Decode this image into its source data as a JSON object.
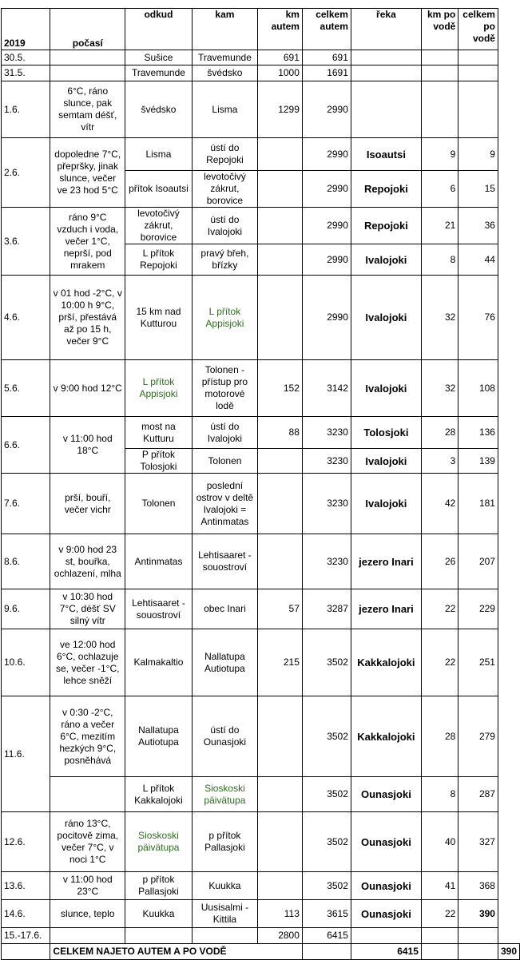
{
  "table": {
    "header": [
      "2019",
      "počasí",
      "odkud",
      "kam",
      "km autem",
      "celkem autem",
      "řeka",
      "km po vodě",
      "celkem po vodě"
    ],
    "rows": [
      [
        "30.5.",
        null,
        "Sušice",
        "Travemunde",
        691,
        691,
        null,
        null,
        null
      ],
      [
        "31.5.",
        null,
        "Travemunde",
        "švédsko",
        1000,
        1691,
        null,
        null,
        null
      ],
      [
        "1.6.",
        "6°C, ráno slunce, pak semtam déšť, vítr",
        "švédsko",
        "Lisma",
        1299,
        2990,
        null,
        null,
        null
      ],
      [
        "2.6.",
        "dopoledne 7°C, přepršky, jinak slunce, večer ve 23 hod  5°C",
        "Lisma",
        "ústí do Repojoki",
        null,
        2990,
        "Isoautsi",
        9,
        9
      ],
      [
        null,
        null,
        "přítok Isoautsi",
        "levotočivý zákrut, borovice",
        null,
        2990,
        "Repojoki",
        6,
        15
      ],
      [
        "3.6.",
        "ráno 9°C vzduch i voda, večer 1°C, neprší, pod mrakem",
        "levotočivý zákrut, borovice",
        "ústí do Ivalojoki",
        null,
        2990,
        "Repojoki",
        21,
        36
      ],
      [
        null,
        null,
        "L přítok Repojoki",
        "pravý břeh, břízky",
        null,
        2990,
        "Ivalojoki",
        8,
        44
      ],
      [
        "4.6.",
        "v 01 hod  -2°C, v 10:00 h 9°C, prší, přestává až po 15 h, večer 9°C",
        "15 km nad Kutturou",
        "L přítok Appisjoki",
        null,
        2990,
        "Ivalojoki",
        32,
        76
      ],
      [
        "5.6.",
        "v 9:00 hod 12°C",
        "L přítok Appisjoki",
        "Tolonen - přístup pro motorové lodě",
        152,
        3142,
        "Ivalojoki",
        32,
        108
      ],
      [
        "6.6.",
        "v 11:00 hod 18°C",
        "most na Kutturu",
        "ústí do Ivalojoki",
        88,
        3230,
        "Tolosjoki",
        28,
        136
      ],
      [
        null,
        null,
        "P přítok Tolosjoki",
        "Tolonen",
        null,
        3230,
        "Ivalojoki",
        3,
        139
      ],
      [
        "7.6.",
        "prší, bouří, večer vichr",
        "Tolonen",
        "poslední ostrov v deltě Ivalojoki = Antinmatas",
        null,
        3230,
        "Ivalojoki",
        42,
        181
      ],
      [
        "8.6.",
        "v 9:00 hod 23 st, bouřka, ochlazení, mlha",
        "Antinmatas",
        "Lehtisaaret - souostroví",
        null,
        3230,
        "jezero Inari",
        26,
        207
      ],
      [
        "9.6.",
        "v 10:30 hod 7°C, déšť SV silný vítr",
        "Lehtisaaret - souostroví",
        "obec Inari",
        57,
        3287,
        "jezero Inari",
        22,
        229
      ],
      [
        "10.6.",
        "ve 12:00 hod 6°C, ochlazuje se, večer -1°C, lehce sněží",
        "Kalmakaltio",
        "Nallatupa Autiotupa",
        215,
        3502,
        "Kakkalojoki",
        22,
        251
      ],
      [
        "11.6.",
        "v 0:30 -2°C, ráno a večer 6°C, mezitím hezkých 9°C, posněhává",
        "Nallatupa Autiotupa",
        "ústí do Ounasjoki",
        null,
        3502,
        "Kakkalojoki",
        28,
        279
      ],
      [
        null,
        null,
        "L přítok Kakkalojoki",
        "Sioskoski päivätupa",
        null,
        3502,
        "Ounasjoki",
        8,
        287
      ],
      [
        "12.6.",
        "ráno 13°C, pocitově zima, večer 7°C, v noci 1°C",
        "Sioskoski päivätupa",
        "p přítok Pallasjoki",
        null,
        3502,
        "Ounasjoki",
        40,
        327
      ],
      [
        "13.6.",
        "v 11:00 hod 23°C",
        "p přítok Pallasjoki",
        "Kuukka",
        null,
        3502,
        "Ounasjoki",
        41,
        368
      ],
      [
        "14.6.",
        "slunce, teplo",
        "Kuukka",
        "Uusisalmi - Kittila",
        113,
        3615,
        "Ounasjoki",
        22,
        390
      ],
      [
        "15.-17.6.",
        null,
        null,
        null,
        2800,
        6415,
        null,
        null,
        null
      ]
    ],
    "total": {
      "label": "CELKEM NAJETO AUTEM A PO VODĚ",
      "car": 6415,
      "water": 390
    }
  }
}
